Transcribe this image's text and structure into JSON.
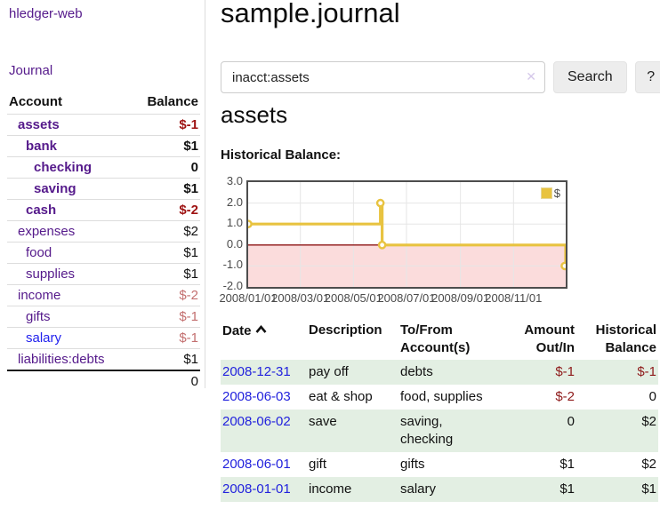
{
  "colors": {
    "link_purple": "#551a8b",
    "link_blue": "#2222ee",
    "negative_strong": "#9e1212",
    "negative_muted": "#c36f6f",
    "register_negative": "#8e1a1a",
    "row_shade_green": "#e3efe3",
    "series_yellow": "#e8c340",
    "zero_line_red": "#8e1515",
    "negative_region_pink": "#fbdcdc"
  },
  "icons": {
    "clear_search": "✕",
    "sort_ascending": "⌃"
  },
  "sidebar": {
    "brand": "hledger-web",
    "journal_link": "Journal",
    "table": {
      "col_account": "Account",
      "col_balance": "Balance",
      "rows": [
        {
          "account": "assets",
          "balance": "$-1",
          "level": 1,
          "bold": true,
          "link_color": "purple",
          "balance_color": "negative"
        },
        {
          "account": "bank",
          "balance": "$1",
          "level": 2,
          "bold": true,
          "link_color": "purple",
          "balance_color": "normal"
        },
        {
          "account": "checking",
          "balance": "0",
          "level": 3,
          "bold": true,
          "link_color": "purple",
          "balance_color": "normal"
        },
        {
          "account": "saving",
          "balance": "$1",
          "level": 3,
          "bold": true,
          "link_color": "purple",
          "balance_color": "normal"
        },
        {
          "account": "cash",
          "balance": "$-2",
          "level": 2,
          "bold": true,
          "link_color": "purple",
          "balance_color": "negative"
        },
        {
          "account": "expenses",
          "balance": "$2",
          "level": 1,
          "bold": false,
          "link_color": "purple",
          "balance_color": "normal"
        },
        {
          "account": "food",
          "balance": "$1",
          "level": 2,
          "bold": false,
          "link_color": "purple",
          "balance_color": "normal"
        },
        {
          "account": "supplies",
          "balance": "$1",
          "level": 2,
          "bold": false,
          "link_color": "purple",
          "balance_color": "normal"
        },
        {
          "account": "income",
          "balance": "$-2",
          "level": 1,
          "bold": false,
          "link_color": "purple",
          "balance_color": "negative-muted"
        },
        {
          "account": "gifts",
          "balance": "$-1",
          "level": 2,
          "bold": false,
          "link_color": "purple",
          "balance_color": "negative-muted"
        },
        {
          "account": "salary",
          "balance": "$-1",
          "level": 2,
          "bold": false,
          "link_color": "blue",
          "balance_color": "negative-muted"
        },
        {
          "account": "liabilities:debts",
          "balance": "$1",
          "level": 1,
          "bold": false,
          "link_color": "purple",
          "balance_color": "normal"
        }
      ],
      "total": "0"
    }
  },
  "main": {
    "title": "sample.journal",
    "search": {
      "value": "inacct:assets",
      "button_label": "Search",
      "help_label": "?"
    },
    "account_heading": "assets"
  },
  "chart_data": {
    "type": "line",
    "title": "Historical Balance:",
    "legend": [
      {
        "label": "$",
        "color": "#e8c340"
      }
    ],
    "ylim": [
      -2,
      3
    ],
    "y_ticks": [
      {
        "label": "3.0",
        "value": 3
      },
      {
        "label": "2.0",
        "value": 2
      },
      {
        "label": "1.0",
        "value": 1
      },
      {
        "label": "0.0",
        "value": 0
      },
      {
        "label": "-1.0",
        "value": -1
      },
      {
        "label": "-2.0",
        "value": -2
      }
    ],
    "x_ticks": [
      {
        "label": "2008/01/01",
        "day": 0
      },
      {
        "label": "2008/03/01",
        "day": 60
      },
      {
        "label": "2008/05/01",
        "day": 121
      },
      {
        "label": "2008/07/01",
        "day": 182
      },
      {
        "label": "2008/09/01",
        "day": 244
      },
      {
        "label": "2008/11/01",
        "day": 305
      }
    ],
    "x_max_day": 365,
    "grid": true,
    "legend_position": "top-right",
    "negative_region_below": 0,
    "series": [
      {
        "name": "$",
        "color": "#e8c340",
        "step": true,
        "points": [
          {
            "date": "2008-01-01",
            "day": 0,
            "value": 1
          },
          {
            "date": "2008-06-01",
            "day": 152,
            "value": 2
          },
          {
            "date": "2008-06-03",
            "day": 154,
            "value": 0
          },
          {
            "date": "2008-12-31",
            "day": 365,
            "value": -1
          }
        ]
      }
    ]
  },
  "register": {
    "headers": {
      "date": "Date",
      "description": "Description",
      "tofrom_line1": "To/From",
      "tofrom_line2": "Account(s)",
      "amount_line1": "Amount",
      "amount_line2": "Out/In",
      "balance_line1": "Historical",
      "balance_line2": "Balance"
    },
    "rows": [
      {
        "date": "2008-12-31",
        "description": "pay off",
        "accounts": "debts",
        "amount": "$-1",
        "balance": "$-1"
      },
      {
        "date": "2008-06-03",
        "description": "eat & shop",
        "accounts": "food, supplies",
        "amount": "$-2",
        "balance": "0"
      },
      {
        "date": "2008-06-02",
        "description": "save",
        "accounts": "saving, checking",
        "amount": "0",
        "balance": "$2"
      },
      {
        "date": "2008-06-01",
        "description": "gift",
        "accounts": "gifts",
        "amount": "$1",
        "balance": "$2"
      },
      {
        "date": "2008-01-01",
        "description": "income",
        "accounts": "salary",
        "amount": "$1",
        "balance": "$1"
      }
    ]
  }
}
